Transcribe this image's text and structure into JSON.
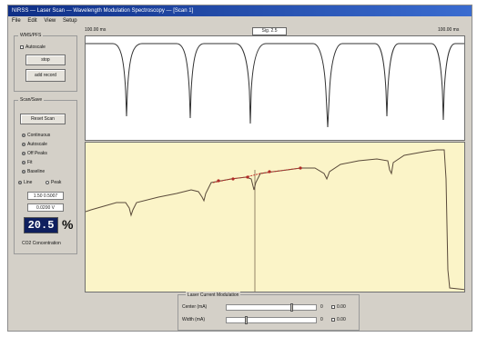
{
  "window": {
    "title": "NIRSS — Laser Scan — Wavelength Modulation Spectroscopy — [Scan 1]"
  },
  "menu": [
    "File",
    "Edit",
    "View",
    "Setup"
  ],
  "wms_control": {
    "title": "WMS/PFS",
    "autoscale_label": "Autoscale",
    "stop_label": "stop",
    "add_record_label": "add record"
  },
  "scan_panel": {
    "title": "Scan/Save",
    "reset_scan_label": "Reset Scan",
    "options": [
      {
        "label": "Continuous",
        "on": true
      },
      {
        "label": "Autoscale",
        "on": true
      },
      {
        "label": "Off Peaks",
        "on": true
      },
      {
        "label": "Fit",
        "on": true
      },
      {
        "label": "Baseline",
        "on": true
      }
    ],
    "mode_left": "Line",
    "mode_right": "Peak",
    "field1": "1.50 0.5007",
    "field2": "0.0200 V",
    "concentration": "20.5",
    "concentration_unit": "%",
    "concentration_label": "CO2 Concentration"
  },
  "top_plot": {
    "left_label": "100.00 ms",
    "right_label": "100.00 ms",
    "center_field": "Sig. 2.5"
  },
  "modulation": {
    "title": "Laser Current Modulation",
    "row1_label": "Center (mA)",
    "row1_value": "0",
    "row1_option": "0.00",
    "row2_label": "Width (mA)",
    "row2_value": "0",
    "row2_option": "0.00"
  }
}
